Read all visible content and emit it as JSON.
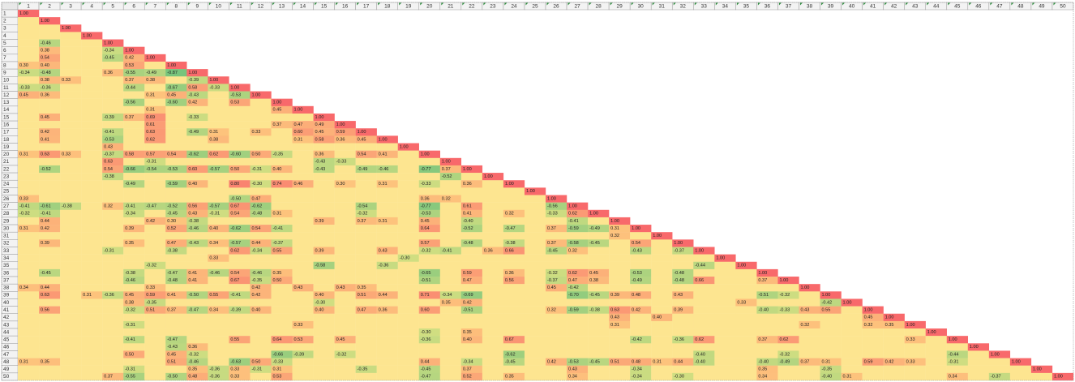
{
  "chart_data": {
    "type": "heatmap",
    "categories": [
      1,
      2,
      3,
      4,
      5,
      6,
      7,
      8,
      9,
      10,
      11,
      12,
      13,
      14,
      15,
      16,
      17,
      18,
      19,
      20,
      21,
      22,
      23,
      24,
      25,
      26,
      27,
      28,
      29,
      30,
      31,
      32,
      33,
      34,
      35,
      36,
      37,
      38,
      39,
      40,
      41,
      42,
      43,
      44,
      45,
      46,
      47,
      48,
      49,
      50
    ],
    "color_domain": [
      -1,
      0,
      1
    ],
    "color_scale": [
      "#63be7b",
      "#ffeb84",
      "#f8696b"
    ],
    "blank_color": "#fde590",
    "rows": [
      {
        "values": {
          "1": 1
        },
        "value_labels": {
          "1": "1.00"
        }
      },
      {
        "values": {
          "2": 1
        },
        "value_labels": {
          "2": "1.00"
        }
      },
      {
        "values": {
          "3": 1
        },
        "value_labels": {
          "3": "1.00"
        }
      },
      {
        "values": {
          "4": 1
        },
        "value_labels": {
          "4": "1.00"
        }
      },
      {
        "values": {
          "2": -0.46,
          "5": 1
        },
        "value_labels": {
          "5": "1.00"
        }
      },
      {
        "values": {
          "2": 0.38,
          "5": -0.34,
          "6": 1
        },
        "value_labels": {
          "6": "1.00"
        }
      },
      {
        "values": {
          "2": 0.54,
          "5": -0.45,
          "6": 0.42,
          "7": 1
        },
        "value_labels": {
          "7": "1.00"
        }
      },
      {
        "values": {
          "1": 0.3,
          "2": 0.4,
          "6": 0.53,
          "8": 1
        },
        "value_labels": {
          "1": "0.30",
          "2": "0.40",
          "8": "1.00"
        }
      },
      {
        "values": {
          "1": -0.34,
          "2": -0.48,
          "5": 0.36,
          "6": -0.55,
          "7": -0.49,
          "8": -0.87,
          "9": 1
        },
        "value_labels": {
          "9": "1.00"
        }
      },
      {
        "values": {
          "2": 0.38,
          "3": 0.33,
          "6": 0.37,
          "7": 0.38,
          "9": -0.39,
          "10": 1
        },
        "value_labels": {
          "10": "1.00"
        }
      },
      {
        "values": {
          "1": -0.33,
          "2": -0.36,
          "6": -0.44,
          "8": -0.67,
          "9": 0.58,
          "10": -0.33,
          "11": 1
        },
        "value_labels": {
          "11": "1.00"
        }
      },
      {
        "values": {
          "1": 0.45,
          "2": 0.36,
          "7": 0.31,
          "8": 0.45,
          "9": -0.43,
          "11": -0.53,
          "12": 1
        },
        "value_labels": {
          "12": "1.00"
        }
      },
      {
        "values": {
          "6": -0.56,
          "8": -0.6,
          "9": 0.42,
          "11": 0.53,
          "13": 1
        },
        "value_labels": {
          "8": "-0.60",
          "13": "1.00"
        }
      },
      {
        "values": {
          "7": 0.31,
          "13": 0.45,
          "14": 1
        },
        "value_labels": {
          "14": "1.00"
        }
      },
      {
        "values": {
          "2": 0.45,
          "5": -0.39,
          "6": 0.37,
          "7": 0.69,
          "9": -0.33,
          "15": 1
        },
        "value_labels": {
          "15": "1.00"
        }
      },
      {
        "values": {
          "7": 0.61,
          "13": 0.37,
          "14": 0.47,
          "15": 0.49,
          "16": 1
        },
        "value_labels": {
          "16": "1.00"
        }
      },
      {
        "values": {
          "2": 0.42,
          "5": -0.41,
          "7": 0.63,
          "9": -0.49,
          "10": 0.31,
          "12": 0.33,
          "14": 0.6,
          "15": 0.45,
          "16": 0.59,
          "17": 1
        },
        "value_labels": {
          "14": "0.60",
          "17": "1.00"
        }
      },
      {
        "values": {
          "2": 0.41,
          "5": -0.53,
          "7": 0.62,
          "10": 0.38,
          "14": 0.31,
          "15": 0.58,
          "16": 0.36,
          "17": 0.45,
          "18": 1
        },
        "value_labels": {
          "18": "1.00"
        }
      },
      {
        "values": {
          "5": 0.43,
          "19": 1
        },
        "value_labels": {
          "19": "1.00"
        }
      },
      {
        "values": {
          "1": 0.31,
          "2": 0.63,
          "3": 0.33,
          "5": -0.37,
          "6": 0.58,
          "7": 0.57,
          "8": 0.54,
          "9": -0.62,
          "10": 0.62,
          "11": -0.6,
          "12": 0.5,
          "13": -0.35,
          "15": 0.36,
          "17": 0.54,
          "18": 0.41,
          "20": 1
        },
        "value_labels": {
          "11": "-0.60",
          "12": "0.50",
          "20": "1.00"
        }
      },
      {
        "values": {
          "5": 0.63,
          "7": -0.31,
          "15": -0.43,
          "16": -0.33,
          "21": 1
        },
        "value_labels": {
          "21": "1.00"
        }
      },
      {
        "values": {
          "2": -0.52,
          "5": 0.54,
          "6": -0.66,
          "7": -0.54,
          "8": -0.53,
          "9": 0.6,
          "10": -0.57,
          "11": 0.5,
          "12": -0.31,
          "13": 0.4,
          "15": -0.43,
          "17": -0.49,
          "18": -0.46,
          "20": -0.77,
          "21": 0.37,
          "22": 1
        },
        "value_labels": {
          "9": "0.60",
          "11": "0.50",
          "13": "0.40",
          "22": "1.00"
        }
      },
      {
        "values": {
          "5": -0.38,
          "21": -0.52,
          "23": 1
        },
        "value_labels": {
          "23": "1.00"
        }
      },
      {
        "values": {
          "6": -0.49,
          "8": -0.59,
          "9": 0.4,
          "11": 0.8,
          "12": -0.3,
          "13": 0.74,
          "14": 0.46,
          "16": 0.3,
          "18": 0.31,
          "20": -0.33,
          "22": 0.36,
          "24": 1
        },
        "value_labels": {
          "9": "0.40",
          "11": "0.80",
          "12": "-0.30",
          "16": "0.30",
          "24": "1.00"
        }
      },
      {
        "values": {
          "25": 1
        },
        "value_labels": {
          "25": "1.00"
        }
      },
      {
        "values": {
          "1": 0.33,
          "11": -0.5,
          "12": 0.47,
          "20": 0.36,
          "21": 0.32,
          "26": 1
        },
        "value_labels": {
          "11": "-0.50",
          "26": "1.00"
        }
      },
      {
        "values": {
          "1": -0.41,
          "2": -0.61,
          "3": -0.38,
          "5": 0.32,
          "6": -0.41,
          "7": -0.47,
          "8": -0.52,
          "9": 0.56,
          "10": -0.57,
          "11": 0.67,
          "12": -0.62,
          "17": -0.54,
          "20": -0.77,
          "22": 0.61,
          "26": -0.56,
          "27": 1
        },
        "value_labels": {
          "27": "1.00"
        }
      },
      {
        "values": {
          "1": -0.32,
          "2": -0.41,
          "6": -0.34,
          "8": -0.45,
          "9": 0.43,
          "10": -0.31,
          "11": 0.54,
          "12": -0.48,
          "13": 0.31,
          "17": -0.32,
          "20": -0.53,
          "22": 0.41,
          "24": 0.32,
          "26": -0.33,
          "27": 0.62,
          "28": 1
        },
        "value_labels": {
          "28": "1.00"
        }
      },
      {
        "values": {
          "2": 0.44,
          "7": 0.42,
          "8": 0.3,
          "9": -0.38,
          "15": 0.39,
          "17": 0.37,
          "18": 0.31,
          "20": 0.45,
          "22": -0.4,
          "27": -0.41,
          "29": 1
        },
        "value_labels": {
          "8": "0.30",
          "22": "-0.40",
          "29": "1.00"
        }
      },
      {
        "values": {
          "1": 0.31,
          "2": 0.42,
          "6": 0.39,
          "8": 0.52,
          "9": -0.46,
          "10": 0.4,
          "11": -0.62,
          "12": 0.54,
          "13": -0.41,
          "20": 0.64,
          "22": -0.52,
          "24": -0.47,
          "26": 0.37,
          "27": -0.59,
          "28": -0.49,
          "29": 0.31,
          "30": 1
        },
        "value_labels": {
          "10": "0.40",
          "30": "1.00"
        }
      },
      {
        "values": {
          "29": 0.32,
          "31": 1
        },
        "value_labels": {
          "31": "1.00"
        }
      },
      {
        "values": {
          "2": 0.39,
          "6": 0.35,
          "8": 0.47,
          "9": -0.43,
          "10": 0.34,
          "11": -0.57,
          "12": 0.44,
          "13": -0.37,
          "20": 0.57,
          "22": -0.48,
          "24": -0.38,
          "26": 0.37,
          "27": -0.58,
          "28": -0.45,
          "30": 0.54,
          "32": 1
        },
        "value_labels": {
          "32": "1.00"
        }
      },
      {
        "values": {
          "5": -0.31,
          "8": -0.38,
          "11": 0.62,
          "12": -0.34,
          "13": 0.55,
          "15": 0.39,
          "18": 0.43,
          "20": -0.32,
          "21": -0.41,
          "23": 0.36,
          "24": 0.66,
          "26": -0.45,
          "27": 0.32,
          "30": -0.43,
          "32": -0.37,
          "33": 1
        },
        "value_labels": {
          "33": "1.00"
        }
      },
      {
        "values": {
          "10": 0.33,
          "19": -0.3,
          "34": 1
        },
        "value_labels": {
          "19": "-0.30",
          "34": "1.00"
        }
      },
      {
        "values": {
          "7": -0.32,
          "15": -0.58,
          "18": -0.36,
          "33": -0.44,
          "35": 1
        },
        "value_labels": {
          "35": "1.00"
        }
      },
      {
        "values": {
          "2": -0.45,
          "6": -0.38,
          "8": -0.47,
          "9": 0.41,
          "10": -0.46,
          "11": 0.54,
          "12": -0.46,
          "13": 0.35,
          "20": -0.65,
          "22": 0.59,
          "24": 0.36,
          "26": -0.32,
          "27": 0.62,
          "28": 0.45,
          "30": -0.53,
          "32": -0.48,
          "36": 1
        },
        "value_labels": {
          "36": "1.00"
        }
      },
      {
        "values": {
          "6": -0.46,
          "8": -0.48,
          "9": 0.41,
          "11": 0.67,
          "12": -0.35,
          "13": 0.5,
          "20": -0.51,
          "22": 0.47,
          "24": 0.56,
          "26": -0.37,
          "27": 0.47,
          "28": 0.38,
          "30": -0.49,
          "32": -0.48,
          "33": 0.66,
          "36": 0.37,
          "37": 1
        },
        "value_labels": {
          "13": "0.50",
          "37": "1.00"
        }
      },
      {
        "values": {
          "1": 0.34,
          "2": 0.44,
          "7": 0.33,
          "12": 0.42,
          "14": 0.43,
          "16": 0.43,
          "17": 0.35,
          "26": 0.45,
          "27": -0.42,
          "38": 1
        },
        "value_labels": {
          "38": "1.00"
        }
      },
      {
        "values": {
          "2": 0.63,
          "4": 0.31,
          "5": -0.36,
          "6": 0.45,
          "7": 0.59,
          "8": 0.41,
          "9": -0.5,
          "10": 0.55,
          "11": -0.41,
          "12": 0.42,
          "15": 0.4,
          "17": 0.51,
          "18": 0.44,
          "20": 0.71,
          "21": -0.34,
          "22": -0.69,
          "27": -0.7,
          "28": -0.45,
          "29": 0.39,
          "30": 0.48,
          "32": 0.43,
          "36": -0.51,
          "37": -0.32,
          "39": 1
        },
        "value_labels": {
          "9": "-0.50",
          "15": "0.40",
          "27": "-0.70",
          "39": "1.00"
        }
      },
      {
        "values": {
          "6": 0.38,
          "7": -0.35,
          "15": -0.3,
          "21": 0.35,
          "22": 0.42,
          "35": 0.33,
          "39": -0.42,
          "40": 1
        },
        "value_labels": {
          "15": "-0.30",
          "40": "1.00"
        }
      },
      {
        "values": {
          "2": 0.56,
          "6": -0.32,
          "7": 0.51,
          "8": 0.37,
          "9": -0.47,
          "10": 0.34,
          "11": -0.39,
          "12": 0.4,
          "15": 0.4,
          "17": 0.47,
          "18": 0.36,
          "20": 0.6,
          "22": -0.51,
          "26": 0.32,
          "27": -0.59,
          "28": -0.38,
          "29": 0.63,
          "30": 0.42,
          "32": 0.39,
          "36": -0.4,
          "37": -0.33,
          "38": 0.43,
          "39": 0.55,
          "41": 1
        },
        "value_labels": {
          "12": "0.40",
          "15": "0.40",
          "20": "0.60",
          "36": "-0.40",
          "41": "1.00"
        }
      },
      {
        "values": {
          "29": 0.43,
          "31": 0.4,
          "41": 0.45,
          "42": 1
        },
        "value_labels": {
          "31": "0.40",
          "42": "1.00"
        }
      },
      {
        "values": {
          "6": -0.31,
          "14": 0.33,
          "29": 0.31,
          "38": 0.32,
          "41": 0.32,
          "42": 0.35,
          "43": 1
        },
        "value_labels": {
          "43": "1.00"
        }
      },
      {
        "values": {
          "20": -0.3,
          "22": 0.35,
          "44": 1
        },
        "value_labels": {
          "20": "-0.30",
          "44": "1.00"
        }
      },
      {
        "values": {
          "6": -0.41,
          "8": -0.47,
          "11": 0.55,
          "13": 0.64,
          "14": 0.53,
          "16": 0.45,
          "20": -0.36,
          "22": 0.4,
          "24": 0.67,
          "30": -0.42,
          "32": -0.36,
          "33": 0.62,
          "36": 0.37,
          "37": 0.62,
          "43": 0.33,
          "45": 1
        },
        "value_labels": {
          "22": "0.40",
          "45": "1.00"
        }
      },
      {
        "values": {
          "8": -0.43,
          "9": 0.36,
          "46": 1
        },
        "value_labels": {
          "46": "1.00"
        }
      },
      {
        "values": {
          "6": 0.5,
          "8": 0.45,
          "9": -0.32,
          "13": -0.66,
          "14": -0.39,
          "16": -0.32,
          "24": -0.62,
          "33": -0.4,
          "37": -0.32,
          "45": -0.44,
          "47": 1
        },
        "value_labels": {
          "6": "0.50",
          "33": "-0.40",
          "47": "1.00"
        }
      },
      {
        "values": {
          "1": 0.31,
          "2": 0.35,
          "8": 0.51,
          "9": -0.46,
          "11": -0.63,
          "12": 0.5,
          "13": -0.33,
          "20": 0.44,
          "22": -0.34,
          "24": -0.45,
          "26": 0.42,
          "27": -0.53,
          "28": -0.45,
          "29": 0.51,
          "30": 0.48,
          "31": 0.31,
          "32": 0.44,
          "33": -0.4,
          "36": -0.4,
          "37": -0.49,
          "38": 0.37,
          "39": 0.31,
          "41": 0.59,
          "42": 0.42,
          "43": 0.33,
          "45": -0.31,
          "48": 1
        },
        "value_labels": {
          "12": "0.50",
          "33": "-0.40",
          "36": "-0.40",
          "48": "1.00"
        }
      },
      {
        "values": {
          "6": -0.31,
          "9": 0.35,
          "10": -0.36,
          "11": 0.33,
          "12": -0.31,
          "13": 0.31,
          "17": -0.35,
          "20": -0.45,
          "22": 0.37,
          "27": 0.43,
          "30": -0.34,
          "36": 0.35,
          "39": -0.35,
          "49": 1
        },
        "value_labels": {
          "49": "1.00"
        }
      },
      {
        "values": {
          "5": 0.37,
          "6": -0.55,
          "8": -0.5,
          "9": 0.48,
          "10": -0.36,
          "11": 0.33,
          "13": 0.53,
          "20": -0.47,
          "22": 0.52,
          "24": 0.35,
          "27": 0.34,
          "30": -0.34,
          "32": -0.3,
          "36": 0.34,
          "39": -0.4,
          "40": 0.31,
          "45": 0.34,
          "47": -0.37,
          "50": 1
        },
        "value_labels": {
          "8": "-0.50",
          "32": "-0.30",
          "39": "-0.40",
          "50": "1.00"
        }
      }
    ]
  }
}
